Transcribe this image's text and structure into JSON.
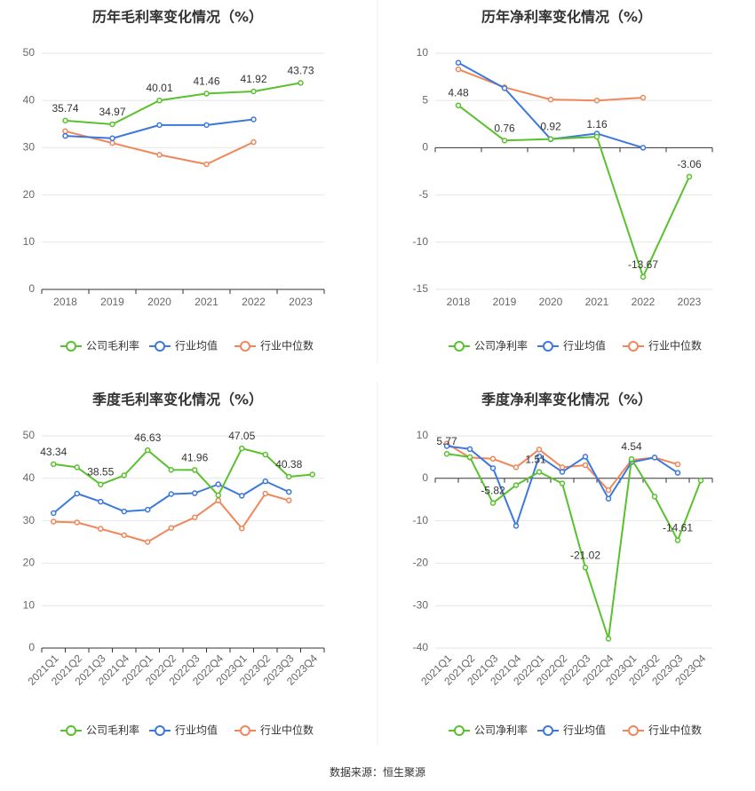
{
  "colors": {
    "company": "#5ac12e",
    "avg": "#3d78db",
    "median": "#f0875a"
  },
  "source": "数据来源：恒生聚源",
  "chart_data": [
    {
      "type": "line",
      "title": "历年毛利率变化情况（%）",
      "categories": [
        "2018",
        "2019",
        "2020",
        "2021",
        "2022",
        "2023"
      ],
      "ylim": [
        0,
        50
      ],
      "yticks": [
        0,
        10,
        20,
        30,
        40,
        50
      ],
      "series": [
        {
          "key": "company",
          "name": "公司毛利率",
          "values": [
            35.74,
            34.97,
            40.01,
            41.46,
            41.92,
            43.73
          ]
        },
        {
          "key": "avg",
          "name": "行业均值",
          "values": [
            32.5,
            32.0,
            34.8,
            34.8,
            36.0,
            null
          ]
        },
        {
          "key": "median",
          "name": "行业中位数",
          "values": [
            33.5,
            31.0,
            28.5,
            26.5,
            31.2,
            null
          ]
        }
      ],
      "labels": [
        {
          "i": 0,
          "text": "35.74"
        },
        {
          "i": 1,
          "text": "34.97"
        },
        {
          "i": 2,
          "text": "40.01"
        },
        {
          "i": 3,
          "text": "41.46"
        },
        {
          "i": 4,
          "text": "41.92"
        },
        {
          "i": 5,
          "text": "43.73"
        }
      ]
    },
    {
      "type": "line",
      "title": "历年净利率变化情况（%）",
      "categories": [
        "2018",
        "2019",
        "2020",
        "2021",
        "2022",
        "2023"
      ],
      "ylim": [
        -15,
        10
      ],
      "yticks": [
        -15,
        -10,
        -5,
        0,
        5,
        10
      ],
      "series": [
        {
          "key": "company",
          "name": "公司净利率",
          "values": [
            4.48,
            0.76,
            0.92,
            1.16,
            -13.67,
            -3.06
          ]
        },
        {
          "key": "avg",
          "name": "行业均值",
          "values": [
            9.0,
            6.3,
            0.9,
            1.5,
            0.0,
            null
          ]
        },
        {
          "key": "median",
          "name": "行业中位数",
          "values": [
            8.3,
            6.4,
            5.1,
            5.0,
            5.3,
            null
          ]
        }
      ],
      "labels": [
        {
          "i": 0,
          "text": "4.48"
        },
        {
          "i": 1,
          "text": "0.76"
        },
        {
          "i": 2,
          "text": "0.92"
        },
        {
          "i": 3,
          "text": "1.16"
        },
        {
          "i": 4,
          "text": "-13.67"
        },
        {
          "i": 5,
          "text": "-3.06"
        }
      ]
    },
    {
      "type": "line",
      "title": "季度毛利率变化情况（%）",
      "categories": [
        "2021Q1",
        "2021Q2",
        "2021Q3",
        "2021Q4",
        "2022Q1",
        "2022Q2",
        "2022Q3",
        "2022Q4",
        "2023Q1",
        "2023Q2",
        "2023Q3",
        "2023Q4"
      ],
      "ylim": [
        0,
        50
      ],
      "yticks": [
        0,
        10,
        20,
        30,
        40,
        50
      ],
      "series": [
        {
          "key": "company",
          "name": "公司毛利率",
          "values": [
            43.34,
            42.6,
            38.55,
            40.7,
            46.63,
            42.0,
            41.96,
            36.0,
            47.05,
            45.6,
            40.38,
            40.9
          ]
        },
        {
          "key": "avg",
          "name": "行业均值",
          "values": [
            31.8,
            36.4,
            34.5,
            32.2,
            32.6,
            36.3,
            36.5,
            38.6,
            35.9,
            39.3,
            36.8,
            null
          ]
        },
        {
          "key": "median",
          "name": "行业中位数",
          "values": [
            29.8,
            29.6,
            28.1,
            26.6,
            25.0,
            28.3,
            30.8,
            34.8,
            28.2,
            36.4,
            34.8,
            null
          ]
        }
      ],
      "labels": [
        {
          "i": 0,
          "text": "43.34"
        },
        {
          "i": 2,
          "text": "38.55"
        },
        {
          "i": 4,
          "text": "46.63"
        },
        {
          "i": 6,
          "text": "41.96"
        },
        {
          "i": 8,
          "text": "47.05"
        },
        {
          "i": 10,
          "text": "40.38"
        }
      ]
    },
    {
      "type": "line",
      "title": "季度净利率变化情况（%）",
      "categories": [
        "2021Q1",
        "2021Q2",
        "2021Q3",
        "2021Q4",
        "2022Q1",
        "2022Q2",
        "2022Q3",
        "2022Q4",
        "2023Q1",
        "2023Q2",
        "2023Q3",
        "2023Q4"
      ],
      "ylim": [
        -40,
        10
      ],
      "yticks": [
        -40,
        -30,
        -20,
        -10,
        0,
        10
      ],
      "series": [
        {
          "key": "company",
          "name": "公司净利率",
          "values": [
            5.77,
            5.0,
            -5.82,
            -1.6,
            1.51,
            -1.2,
            -21.02,
            -37.8,
            4.54,
            -4.3,
            -14.61,
            -0.5
          ]
        },
        {
          "key": "avg",
          "name": "行业均值",
          "values": [
            7.6,
            6.9,
            2.4,
            -11.2,
            5.2,
            1.5,
            5.1,
            -4.8,
            3.8,
            4.9,
            1.3,
            null
          ]
        },
        {
          "key": "median",
          "name": "行业中位数",
          "values": [
            8.2,
            4.9,
            4.6,
            2.6,
            6.8,
            2.6,
            3.1,
            -2.8,
            4.3,
            4.9,
            3.3,
            null
          ]
        }
      ],
      "labels": [
        {
          "i": 0,
          "text": "5.77"
        },
        {
          "i": 2,
          "text": "-5.82"
        },
        {
          "i": 4,
          "text": "1.51"
        },
        {
          "i": 6,
          "text": "-21.02"
        },
        {
          "i": 8,
          "text": "4.54"
        },
        {
          "i": 10,
          "text": "-14.61"
        }
      ]
    }
  ]
}
